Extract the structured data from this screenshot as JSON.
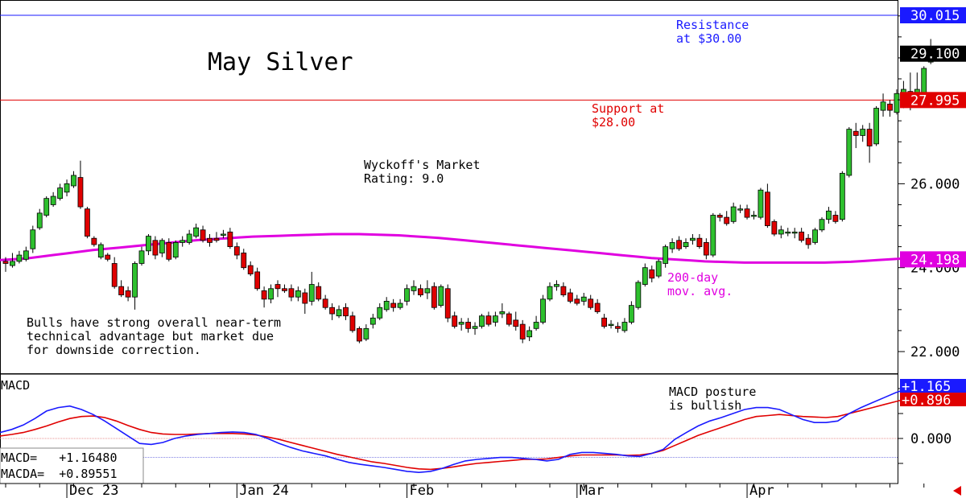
{
  "chart_data": [
    {
      "type": "candlestick",
      "title": "May Silver",
      "rating": "Wyckoff's Market\nRating: 9.0",
      "comment": "Bulls have strong overall near-term\ntechnical advantage but market due\nfor downside correction.",
      "ylim": [
        21.4,
        30.6
      ],
      "y_ticks": [
        "22.000",
        "24.000",
        "26.000"
      ],
      "y_tick_values": [
        22,
        24,
        26
      ],
      "levels": [
        {
          "name": "resistance",
          "value": 30.015,
          "label": "30.015",
          "color": "#1a1aff",
          "annotation": "Resistance\nat $30.00"
        },
        {
          "name": "last-price",
          "value": 29.1,
          "label": "29.100",
          "color": "#000000"
        },
        {
          "name": "support",
          "value": 27.995,
          "label": "27.995",
          "color": "#e00000",
          "annotation": "Support at\n$28.00"
        },
        {
          "name": "ma200",
          "value": 24.198,
          "label": "24.198",
          "color": "#e000e0"
        }
      ],
      "ma_label": "200-day\nmov. avg.",
      "ma_color": "#e000e0",
      "up_color": "#2ec02e",
      "down_color": "#e00000",
      "candles": [
        [
          24.15,
          24.1,
          23.9,
          24.25
        ],
        [
          24.05,
          24.15,
          24.0,
          24.35
        ],
        [
          24.15,
          24.3,
          24.1,
          24.4
        ],
        [
          24.2,
          24.4,
          24.15,
          24.5
        ],
        [
          24.45,
          24.9,
          24.35,
          25.0
        ],
        [
          24.95,
          25.3,
          24.9,
          25.4
        ],
        [
          25.25,
          25.65,
          25.2,
          25.7
        ],
        [
          25.5,
          25.7,
          25.45,
          25.8
        ],
        [
          25.65,
          25.9,
          25.6,
          26.0
        ],
        [
          25.8,
          26.0,
          25.7,
          26.1
        ],
        [
          25.95,
          26.2,
          25.9,
          26.3
        ],
        [
          26.15,
          25.45,
          25.4,
          26.55
        ],
        [
          25.4,
          24.75,
          24.7,
          25.45
        ],
        [
          24.7,
          24.55,
          24.5,
          24.75
        ],
        [
          24.25,
          24.55,
          24.2,
          24.6
        ],
        [
          24.3,
          24.2,
          24.15,
          24.35
        ],
        [
          24.1,
          23.55,
          23.5,
          24.25
        ],
        [
          23.55,
          23.35,
          23.3,
          23.7
        ],
        [
          23.45,
          23.3,
          23.2,
          23.55
        ],
        [
          23.3,
          24.1,
          23.0,
          24.15
        ],
        [
          24.1,
          24.4,
          24.05,
          24.5
        ],
        [
          24.4,
          24.75,
          24.3,
          24.8
        ],
        [
          24.65,
          24.3,
          24.2,
          24.75
        ],
        [
          24.35,
          24.65,
          24.25,
          24.7
        ],
        [
          24.6,
          24.2,
          24.15,
          24.7
        ],
        [
          24.25,
          24.6,
          24.2,
          24.65
        ],
        [
          24.6,
          24.65,
          24.5,
          24.75
        ],
        [
          24.6,
          24.8,
          24.55,
          24.9
        ],
        [
          24.75,
          24.95,
          24.7,
          25.05
        ],
        [
          24.9,
          24.65,
          24.6,
          25.0
        ],
        [
          24.7,
          24.6,
          24.5,
          24.8
        ],
        [
          24.7,
          24.65,
          24.6,
          24.85
        ],
        [
          24.8,
          24.8,
          24.7,
          24.9
        ],
        [
          24.85,
          24.5,
          24.45,
          24.95
        ],
        [
          24.5,
          24.3,
          24.2,
          24.6
        ],
        [
          24.35,
          24.0,
          23.95,
          24.45
        ],
        [
          24.05,
          23.85,
          23.8,
          24.15
        ],
        [
          23.9,
          23.5,
          23.45,
          24.0
        ],
        [
          23.45,
          23.25,
          23.05,
          23.55
        ],
        [
          23.25,
          23.5,
          23.15,
          23.6
        ],
        [
          23.6,
          23.5,
          23.3,
          23.7
        ],
        [
          23.5,
          23.45,
          23.4,
          23.6
        ],
        [
          23.5,
          23.3,
          23.2,
          23.6
        ],
        [
          23.3,
          23.45,
          23.2,
          23.55
        ],
        [
          23.4,
          23.15,
          22.9,
          23.5
        ],
        [
          23.2,
          23.6,
          23.1,
          23.9
        ],
        [
          23.55,
          23.25,
          23.2,
          23.65
        ],
        [
          23.25,
          23.05,
          23.0,
          23.35
        ],
        [
          23.05,
          22.9,
          22.75,
          23.15
        ],
        [
          22.85,
          23.0,
          22.8,
          23.1
        ],
        [
          23.05,
          22.85,
          22.75,
          23.15
        ],
        [
          22.85,
          22.5,
          22.45,
          22.95
        ],
        [
          22.55,
          22.25,
          22.2,
          22.6
        ],
        [
          22.3,
          22.55,
          22.25,
          22.65
        ],
        [
          22.65,
          22.8,
          22.55,
          22.9
        ],
        [
          22.8,
          23.05,
          22.75,
          23.15
        ],
        [
          23.0,
          23.2,
          22.95,
          23.3
        ],
        [
          23.15,
          23.05,
          22.95,
          23.25
        ],
        [
          23.05,
          23.15,
          23.0,
          23.25
        ],
        [
          23.2,
          23.5,
          23.1,
          23.6
        ],
        [
          23.45,
          23.55,
          23.35,
          23.7
        ],
        [
          23.5,
          23.35,
          23.3,
          23.6
        ],
        [
          23.4,
          23.5,
          23.25,
          23.7
        ],
        [
          23.55,
          23.05,
          23.0,
          23.65
        ],
        [
          23.1,
          23.55,
          23.05,
          23.6
        ],
        [
          23.5,
          22.8,
          22.7,
          23.6
        ],
        [
          22.85,
          22.6,
          22.55,
          22.95
        ],
        [
          22.65,
          22.7,
          22.5,
          22.8
        ],
        [
          22.7,
          22.55,
          22.45,
          22.8
        ],
        [
          22.55,
          22.6,
          22.4,
          22.7
        ],
        [
          22.6,
          22.85,
          22.55,
          22.9
        ],
        [
          22.85,
          22.65,
          22.6,
          22.95
        ],
        [
          22.7,
          22.85,
          22.6,
          22.95
        ],
        [
          22.9,
          22.95,
          22.8,
          23.15
        ],
        [
          22.9,
          22.65,
          22.6,
          22.95
        ],
        [
          22.75,
          22.6,
          22.5,
          22.95
        ],
        [
          22.65,
          22.3,
          22.2,
          22.75
        ],
        [
          22.35,
          22.5,
          22.25,
          22.6
        ],
        [
          22.55,
          22.7,
          22.5,
          22.85
        ],
        [
          22.7,
          23.25,
          22.65,
          23.35
        ],
        [
          23.25,
          23.55,
          23.2,
          23.65
        ],
        [
          23.55,
          23.6,
          23.45,
          23.7
        ],
        [
          23.55,
          23.35,
          23.3,
          23.65
        ],
        [
          23.4,
          23.2,
          23.15,
          23.5
        ],
        [
          23.25,
          23.15,
          23.1,
          23.35
        ],
        [
          23.2,
          23.3,
          23.1,
          23.4
        ],
        [
          23.25,
          23.05,
          23.0,
          23.35
        ],
        [
          23.15,
          22.95,
          22.9,
          23.25
        ],
        [
          22.8,
          22.6,
          22.55,
          22.9
        ],
        [
          22.65,
          22.65,
          22.55,
          22.75
        ],
        [
          22.6,
          22.55,
          22.45,
          22.7
        ],
        [
          22.5,
          22.7,
          22.45,
          22.8
        ],
        [
          22.7,
          23.1,
          22.65,
          23.2
        ],
        [
          23.05,
          23.65,
          23.0,
          23.7
        ],
        [
          23.6,
          24.0,
          23.55,
          24.1
        ],
        [
          23.95,
          23.75,
          23.65,
          24.05
        ],
        [
          23.8,
          24.15,
          23.75,
          24.2
        ],
        [
          24.1,
          24.5,
          24.0,
          24.55
        ],
        [
          24.45,
          24.6,
          24.35,
          24.7
        ],
        [
          24.65,
          24.45,
          24.4,
          24.75
        ],
        [
          24.5,
          24.6,
          24.45,
          24.7
        ],
        [
          24.65,
          24.7,
          24.55,
          24.8
        ],
        [
          24.7,
          24.5,
          24.45,
          24.8
        ],
        [
          24.6,
          24.3,
          24.2,
          24.7
        ],
        [
          24.3,
          25.25,
          24.25,
          25.3
        ],
        [
          25.25,
          25.2,
          25.1,
          25.3
        ],
        [
          25.2,
          25.05,
          25.0,
          25.35
        ],
        [
          25.1,
          25.45,
          25.05,
          25.55
        ],
        [
          25.4,
          25.4,
          25.3,
          25.5
        ],
        [
          25.4,
          25.2,
          25.15,
          25.5
        ],
        [
          25.25,
          25.25,
          25.15,
          25.35
        ],
        [
          25.2,
          25.85,
          25.15,
          25.9
        ],
        [
          25.8,
          25.0,
          24.95,
          26.0
        ],
        [
          25.1,
          24.8,
          24.75,
          25.15
        ],
        [
          24.8,
          24.9,
          24.7,
          25.0
        ],
        [
          24.85,
          24.85,
          24.75,
          24.95
        ],
        [
          24.85,
          24.85,
          24.7,
          24.95
        ],
        [
          24.85,
          24.65,
          24.6,
          24.95
        ],
        [
          24.7,
          24.55,
          24.45,
          24.8
        ],
        [
          24.6,
          24.9,
          24.55,
          24.95
        ],
        [
          24.9,
          25.15,
          24.85,
          25.2
        ],
        [
          25.15,
          25.35,
          25.05,
          25.45
        ],
        [
          25.25,
          25.1,
          25.05,
          25.35
        ],
        [
          25.15,
          26.25,
          25.1,
          26.3
        ],
        [
          26.2,
          27.3,
          26.15,
          27.35
        ],
        [
          27.25,
          27.15,
          26.85,
          27.45
        ],
        [
          27.15,
          27.3,
          27.0,
          27.4
        ],
        [
          27.3,
          26.9,
          26.5,
          27.45
        ],
        [
          26.95,
          27.8,
          26.9,
          27.85
        ],
        [
          27.75,
          27.95,
          27.6,
          28.15
        ],
        [
          27.9,
          27.75,
          27.6,
          28.0
        ],
        [
          27.7,
          28.15,
          27.65,
          28.25
        ],
        [
          28.1,
          28.25,
          27.8,
          28.45
        ],
        [
          28.2,
          27.95,
          27.75,
          28.65
        ],
        [
          27.95,
          28.25,
          27.9,
          28.65
        ],
        [
          28.1,
          28.75,
          28.05,
          28.8
        ],
        [
          28.9,
          29.25,
          28.85,
          29.45
        ]
      ],
      "ma200": [
        24.18,
        24.2,
        24.22,
        24.26,
        24.3,
        24.34,
        24.38,
        24.42,
        24.45,
        24.48,
        24.51,
        24.54,
        24.57,
        24.6,
        24.63,
        24.66,
        24.68,
        24.7,
        24.72,
        24.74,
        24.75,
        24.76,
        24.77,
        24.78,
        24.79,
        24.8,
        24.8,
        24.8,
        24.79,
        24.78,
        24.77,
        24.75,
        24.73,
        24.71,
        24.68,
        24.65,
        24.62,
        24.59,
        24.56,
        24.53,
        24.5,
        24.47,
        24.44,
        24.41,
        24.38,
        24.35,
        24.32,
        24.29,
        24.26,
        24.23,
        24.21,
        24.19,
        24.17,
        24.15,
        24.14,
        24.13,
        24.12,
        24.12,
        24.12,
        24.12,
        24.12,
        24.12,
        24.12,
        24.13,
        24.14,
        24.16,
        24.18,
        24.2,
        24.22,
        24.24,
        24.27
      ],
      "x_labels": [
        "Dec 23",
        "Jan 24",
        "Feb",
        "Mar",
        "Apr"
      ],
      "x_label_index": [
        9,
        34,
        59,
        84,
        109
      ]
    },
    {
      "type": "line",
      "title": "MACD",
      "note": "MACD posture\nis bullish",
      "readout": [
        "MACD=   +1.16480",
        "MACDA=  +0.89551"
      ],
      "ylim": [
        -0.75,
        1.3
      ],
      "y_ticks": [
        "0.000"
      ],
      "y_tick_values": [
        0.0
      ],
      "zero_value": 0.0,
      "signal_level": -0.38,
      "series": [
        {
          "name": "MACD",
          "color": "#1a1aff",
          "last_label": "+1.165",
          "values": [
            0.12,
            0.18,
            0.27,
            0.4,
            0.55,
            0.62,
            0.65,
            0.58,
            0.48,
            0.35,
            0.2,
            0.05,
            -0.1,
            -0.12,
            -0.08,
            0.0,
            0.05,
            0.08,
            0.1,
            0.12,
            0.13,
            0.12,
            0.08,
            0.0,
            -0.1,
            -0.18,
            -0.25,
            -0.3,
            -0.35,
            -0.42,
            -0.48,
            -0.52,
            -0.55,
            -0.58,
            -0.62,
            -0.66,
            -0.68,
            -0.66,
            -0.6,
            -0.52,
            -0.45,
            -0.42,
            -0.4,
            -0.38,
            -0.38,
            -0.4,
            -0.42,
            -0.45,
            -0.42,
            -0.32,
            -0.28,
            -0.28,
            -0.3,
            -0.32,
            -0.35,
            -0.36,
            -0.3,
            -0.22,
            -0.02,
            0.12,
            0.25,
            0.35,
            0.42,
            0.5,
            0.58,
            0.62,
            0.62,
            0.58,
            0.48,
            0.38,
            0.32,
            0.32,
            0.35,
            0.5,
            0.62,
            0.72,
            0.82,
            0.92,
            1.0,
            1.07,
            1.165
          ]
        },
        {
          "name": "MACDA",
          "color": "#e00000",
          "last_label": "+0.896",
          "values": [
            0.05,
            0.08,
            0.12,
            0.18,
            0.25,
            0.33,
            0.4,
            0.44,
            0.45,
            0.42,
            0.35,
            0.26,
            0.18,
            0.12,
            0.09,
            0.08,
            0.08,
            0.09,
            0.1,
            0.1,
            0.1,
            0.09,
            0.07,
            0.03,
            -0.02,
            -0.08,
            -0.14,
            -0.2,
            -0.26,
            -0.32,
            -0.37,
            -0.42,
            -0.47,
            -0.5,
            -0.54,
            -0.58,
            -0.61,
            -0.62,
            -0.6,
            -0.57,
            -0.53,
            -0.5,
            -0.48,
            -0.46,
            -0.44,
            -0.42,
            -0.42,
            -0.41,
            -0.38,
            -0.35,
            -0.33,
            -0.33,
            -0.33,
            -0.33,
            -0.34,
            -0.33,
            -0.3,
            -0.24,
            -0.14,
            -0.04,
            0.06,
            0.14,
            0.22,
            0.3,
            0.38,
            0.44,
            0.46,
            0.48,
            0.46,
            0.44,
            0.43,
            0.42,
            0.44,
            0.5,
            0.56,
            0.62,
            0.68,
            0.74,
            0.8,
            0.85,
            0.896
          ]
        }
      ]
    }
  ]
}
